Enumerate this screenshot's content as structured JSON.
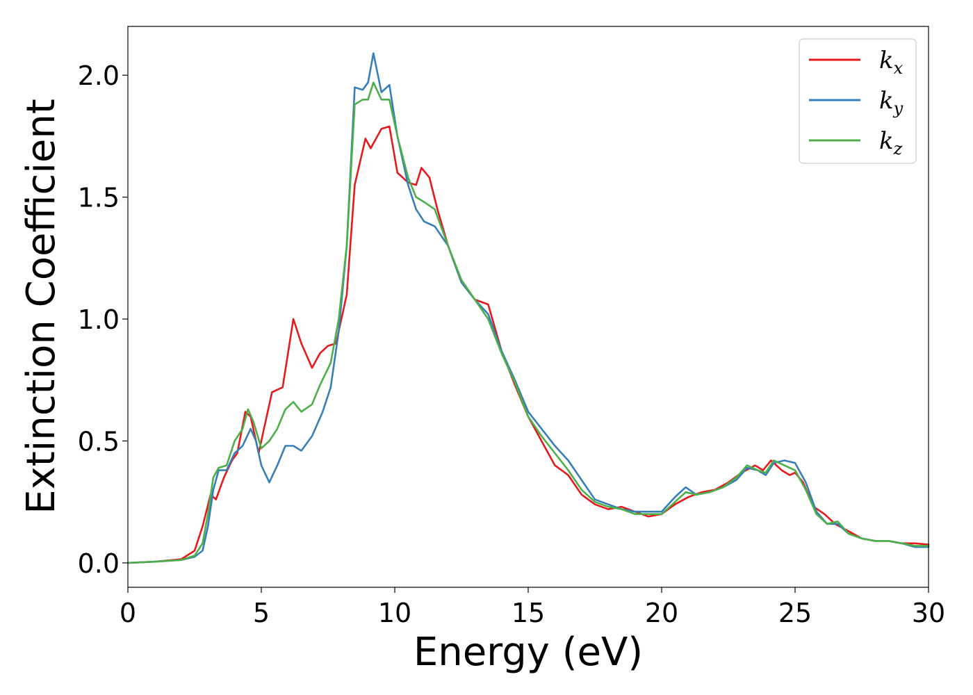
{
  "chart_data": {
    "type": "line",
    "title": "",
    "xlabel": "Energy (eV)",
    "ylabel": "Extinction Coefficient",
    "xlim": [
      0,
      30
    ],
    "ylim": [
      -0.1,
      2.2
    ],
    "xticks": [
      0,
      5,
      10,
      15,
      20,
      25,
      30
    ],
    "xtick_labels": [
      "0",
      "5",
      "10",
      "15",
      "20",
      "25",
      "30"
    ],
    "yticks": [
      0.0,
      0.5,
      1.0,
      1.5,
      2.0
    ],
    "ytick_labels": [
      "0.0",
      "0.5",
      "1.0",
      "1.5",
      "2.0"
    ],
    "grid": false,
    "legend_position": "top-right",
    "series": [
      {
        "name": "k",
        "subscript": "x",
        "color": "#e41a1c",
        "points": [
          [
            0,
            0.0
          ],
          [
            1,
            0.005
          ],
          [
            2,
            0.015
          ],
          [
            2.5,
            0.05
          ],
          [
            2.8,
            0.15
          ],
          [
            3.1,
            0.28
          ],
          [
            3.3,
            0.26
          ],
          [
            3.6,
            0.35
          ],
          [
            3.9,
            0.42
          ],
          [
            4.1,
            0.45
          ],
          [
            4.4,
            0.62
          ],
          [
            4.6,
            0.6
          ],
          [
            4.9,
            0.45
          ],
          [
            5.1,
            0.55
          ],
          [
            5.4,
            0.7
          ],
          [
            5.8,
            0.72
          ],
          [
            6.2,
            1.0
          ],
          [
            6.5,
            0.9
          ],
          [
            6.9,
            0.8
          ],
          [
            7.2,
            0.86
          ],
          [
            7.5,
            0.89
          ],
          [
            7.8,
            0.9
          ],
          [
            8.2,
            1.1
          ],
          [
            8.5,
            1.55
          ],
          [
            8.9,
            1.74
          ],
          [
            9.1,
            1.7
          ],
          [
            9.5,
            1.78
          ],
          [
            9.8,
            1.79
          ],
          [
            10.1,
            1.6
          ],
          [
            10.5,
            1.56
          ],
          [
            10.8,
            1.55
          ],
          [
            11.0,
            1.62
          ],
          [
            11.3,
            1.58
          ],
          [
            11.6,
            1.45
          ],
          [
            12.0,
            1.3
          ],
          [
            12.5,
            1.15
          ],
          [
            13.0,
            1.08
          ],
          [
            13.5,
            1.06
          ],
          [
            14.0,
            0.87
          ],
          [
            14.5,
            0.73
          ],
          [
            15.0,
            0.6
          ],
          [
            15.5,
            0.5
          ],
          [
            16.0,
            0.4
          ],
          [
            16.5,
            0.36
          ],
          [
            17.0,
            0.28
          ],
          [
            17.5,
            0.24
          ],
          [
            18.0,
            0.22
          ],
          [
            18.5,
            0.23
          ],
          [
            19.0,
            0.21
          ],
          [
            19.5,
            0.19
          ],
          [
            20.0,
            0.2
          ],
          [
            20.5,
            0.24
          ],
          [
            21.0,
            0.27
          ],
          [
            21.5,
            0.29
          ],
          [
            22.0,
            0.3
          ],
          [
            22.5,
            0.33
          ],
          [
            23.0,
            0.37
          ],
          [
            23.5,
            0.4
          ],
          [
            23.8,
            0.38
          ],
          [
            24.1,
            0.42
          ],
          [
            24.5,
            0.38
          ],
          [
            24.8,
            0.36
          ],
          [
            25.0,
            0.37
          ],
          [
            25.3,
            0.33
          ],
          [
            25.7,
            0.23
          ],
          [
            26.1,
            0.2
          ],
          [
            26.5,
            0.16
          ],
          [
            27.0,
            0.13
          ],
          [
            27.5,
            0.1
          ],
          [
            28.0,
            0.09
          ],
          [
            28.5,
            0.09
          ],
          [
            29.0,
            0.08
          ],
          [
            29.5,
            0.08
          ],
          [
            30.0,
            0.075
          ]
        ]
      },
      {
        "name": "k",
        "subscript": "y",
        "color": "#377eb8",
        "points": [
          [
            0,
            0.0
          ],
          [
            1,
            0.005
          ],
          [
            2,
            0.012
          ],
          [
            2.5,
            0.025
          ],
          [
            2.8,
            0.05
          ],
          [
            3.0,
            0.15
          ],
          [
            3.2,
            0.3
          ],
          [
            3.4,
            0.38
          ],
          [
            3.7,
            0.38
          ],
          [
            4.0,
            0.45
          ],
          [
            4.3,
            0.48
          ],
          [
            4.6,
            0.55
          ],
          [
            4.8,
            0.5
          ],
          [
            5.0,
            0.4
          ],
          [
            5.3,
            0.33
          ],
          [
            5.6,
            0.4
          ],
          [
            5.9,
            0.48
          ],
          [
            6.2,
            0.48
          ],
          [
            6.5,
            0.46
          ],
          [
            6.9,
            0.52
          ],
          [
            7.3,
            0.62
          ],
          [
            7.6,
            0.72
          ],
          [
            7.9,
            0.95
          ],
          [
            8.2,
            1.3
          ],
          [
            8.5,
            1.95
          ],
          [
            8.8,
            1.94
          ],
          [
            9.0,
            1.97
          ],
          [
            9.2,
            2.09
          ],
          [
            9.5,
            1.93
          ],
          [
            9.8,
            1.96
          ],
          [
            10.1,
            1.75
          ],
          [
            10.5,
            1.55
          ],
          [
            10.8,
            1.45
          ],
          [
            11.1,
            1.4
          ],
          [
            11.5,
            1.38
          ],
          [
            12.0,
            1.3
          ],
          [
            12.5,
            1.15
          ],
          [
            13.0,
            1.08
          ],
          [
            13.5,
            1.02
          ],
          [
            14.0,
            0.87
          ],
          [
            14.5,
            0.75
          ],
          [
            15.0,
            0.62
          ],
          [
            15.5,
            0.55
          ],
          [
            16.0,
            0.48
          ],
          [
            16.5,
            0.42
          ],
          [
            17.0,
            0.34
          ],
          [
            17.5,
            0.26
          ],
          [
            18.0,
            0.24
          ],
          [
            18.5,
            0.22
          ],
          [
            19.0,
            0.21
          ],
          [
            19.5,
            0.21
          ],
          [
            20.0,
            0.21
          ],
          [
            20.5,
            0.27
          ],
          [
            20.9,
            0.31
          ],
          [
            21.3,
            0.28
          ],
          [
            21.8,
            0.29
          ],
          [
            22.3,
            0.31
          ],
          [
            22.8,
            0.34
          ],
          [
            23.2,
            0.39
          ],
          [
            23.6,
            0.38
          ],
          [
            23.9,
            0.36
          ],
          [
            24.2,
            0.41
          ],
          [
            24.6,
            0.42
          ],
          [
            25.0,
            0.41
          ],
          [
            25.4,
            0.33
          ],
          [
            25.8,
            0.21
          ],
          [
            26.2,
            0.16
          ],
          [
            26.6,
            0.16
          ],
          [
            27.0,
            0.12
          ],
          [
            27.5,
            0.1
          ],
          [
            28.0,
            0.09
          ],
          [
            28.5,
            0.09
          ],
          [
            29.0,
            0.08
          ],
          [
            29.5,
            0.065
          ],
          [
            30.0,
            0.065
          ]
        ]
      },
      {
        "name": "k",
        "subscript": "z",
        "color": "#4daf4a",
        "points": [
          [
            0,
            0.0
          ],
          [
            1,
            0.005
          ],
          [
            2,
            0.012
          ],
          [
            2.5,
            0.03
          ],
          [
            2.8,
            0.08
          ],
          [
            3.0,
            0.2
          ],
          [
            3.2,
            0.35
          ],
          [
            3.4,
            0.39
          ],
          [
            3.7,
            0.4
          ],
          [
            4.0,
            0.5
          ],
          [
            4.3,
            0.55
          ],
          [
            4.5,
            0.63
          ],
          [
            4.7,
            0.58
          ],
          [
            5.0,
            0.47
          ],
          [
            5.3,
            0.5
          ],
          [
            5.6,
            0.55
          ],
          [
            5.9,
            0.63
          ],
          [
            6.2,
            0.66
          ],
          [
            6.5,
            0.62
          ],
          [
            6.9,
            0.65
          ],
          [
            7.2,
            0.73
          ],
          [
            7.6,
            0.82
          ],
          [
            7.9,
            1.0
          ],
          [
            8.2,
            1.3
          ],
          [
            8.5,
            1.88
          ],
          [
            8.8,
            1.9
          ],
          [
            9.0,
            1.9
          ],
          [
            9.2,
            1.97
          ],
          [
            9.5,
            1.9
          ],
          [
            9.8,
            1.9
          ],
          [
            10.1,
            1.75
          ],
          [
            10.5,
            1.58
          ],
          [
            10.8,
            1.5
          ],
          [
            11.1,
            1.48
          ],
          [
            11.5,
            1.45
          ],
          [
            12.0,
            1.3
          ],
          [
            12.5,
            1.16
          ],
          [
            13.0,
            1.08
          ],
          [
            13.5,
            1.0
          ],
          [
            14.0,
            0.86
          ],
          [
            14.5,
            0.74
          ],
          [
            15.0,
            0.6
          ],
          [
            15.5,
            0.52
          ],
          [
            16.0,
            0.45
          ],
          [
            16.5,
            0.38
          ],
          [
            17.0,
            0.3
          ],
          [
            17.5,
            0.25
          ],
          [
            18.0,
            0.23
          ],
          [
            18.5,
            0.22
          ],
          [
            19.0,
            0.2
          ],
          [
            19.5,
            0.2
          ],
          [
            20.0,
            0.2
          ],
          [
            20.5,
            0.25
          ],
          [
            20.9,
            0.29
          ],
          [
            21.3,
            0.28
          ],
          [
            21.8,
            0.29
          ],
          [
            22.3,
            0.31
          ],
          [
            22.8,
            0.35
          ],
          [
            23.2,
            0.4
          ],
          [
            23.6,
            0.38
          ],
          [
            23.9,
            0.37
          ],
          [
            24.2,
            0.42
          ],
          [
            24.6,
            0.4
          ],
          [
            25.0,
            0.38
          ],
          [
            25.4,
            0.3
          ],
          [
            25.8,
            0.2
          ],
          [
            26.2,
            0.16
          ],
          [
            26.6,
            0.17
          ],
          [
            27.0,
            0.12
          ],
          [
            27.5,
            0.1
          ],
          [
            28.0,
            0.09
          ],
          [
            28.5,
            0.09
          ],
          [
            29.0,
            0.08
          ],
          [
            29.5,
            0.07
          ],
          [
            30.0,
            0.07
          ]
        ]
      }
    ]
  }
}
